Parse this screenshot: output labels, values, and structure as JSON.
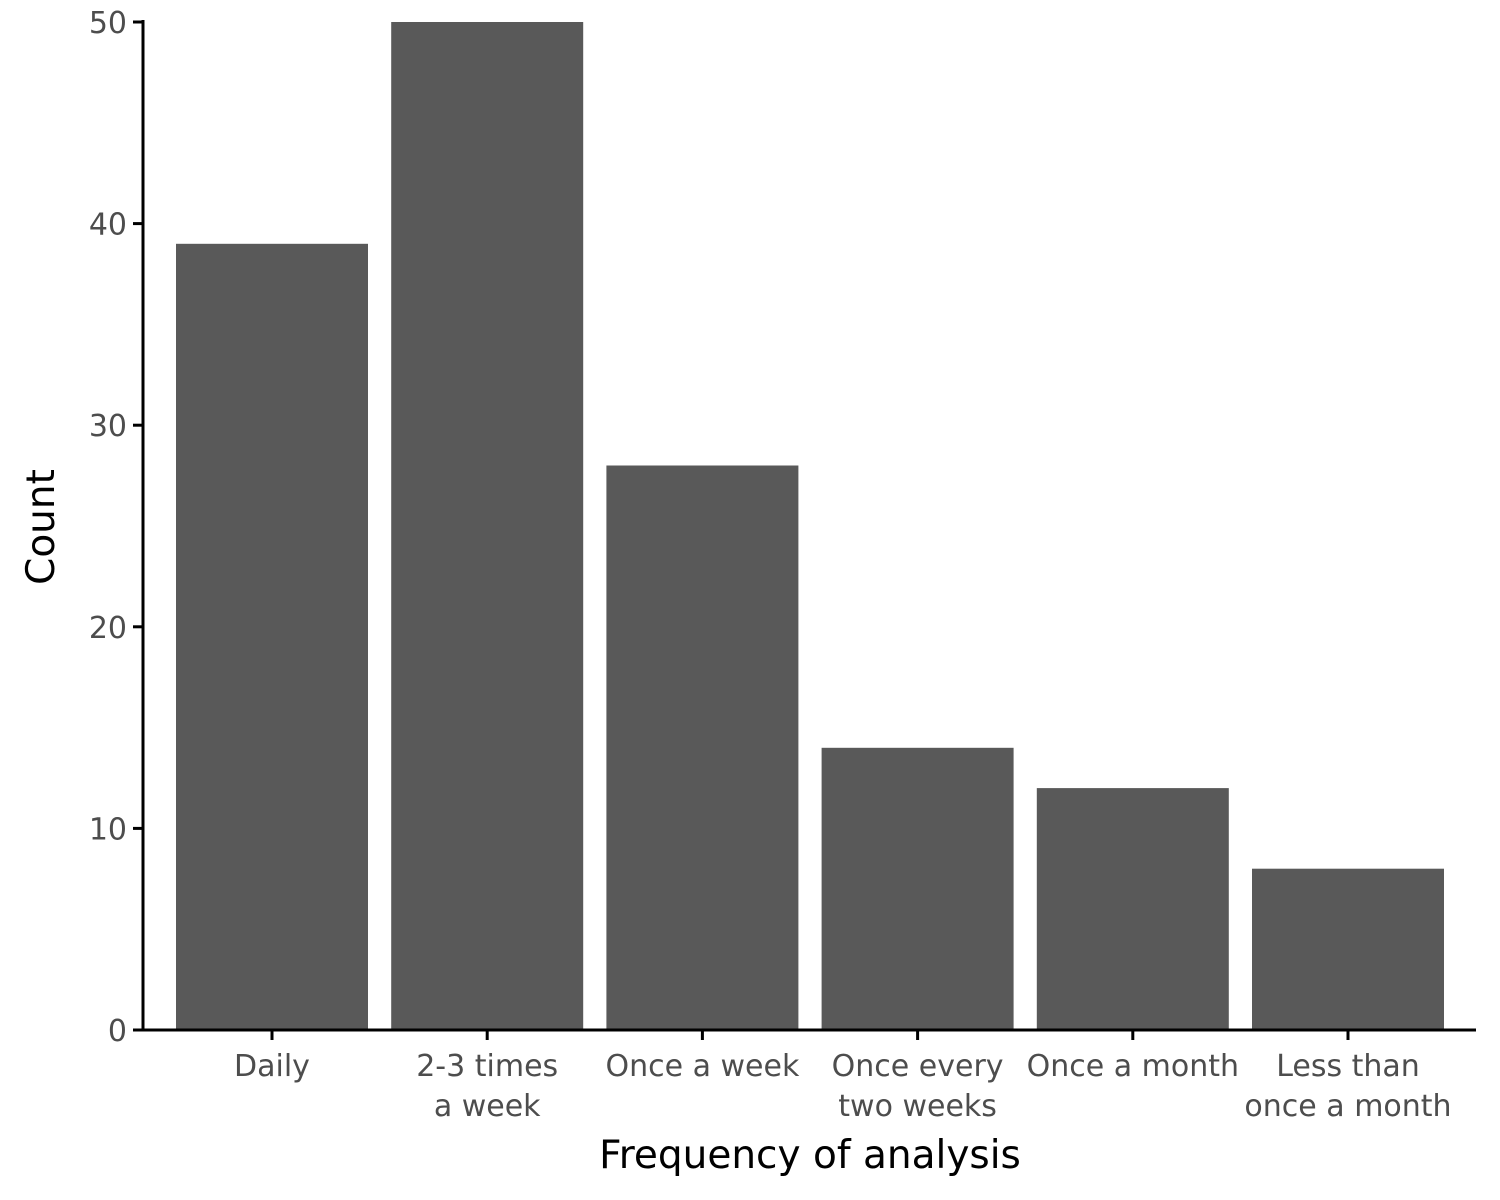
{
  "chart_data": {
    "type": "bar",
    "title": "",
    "xlabel": "Frequency of analysis",
    "ylabel": "Count",
    "categories": [
      [
        "Daily"
      ],
      [
        "2-3 times",
        "a week"
      ],
      [
        "Once a week"
      ],
      [
        "Once every",
        "two weeks"
      ],
      [
        "Once a month"
      ],
      [
        "Less than",
        "once a month"
      ]
    ],
    "values": [
      39,
      50,
      28,
      14,
      12,
      8
    ],
    "ylim": [
      0,
      50
    ],
    "yticks": [
      0,
      10,
      20,
      30,
      40,
      50
    ],
    "grid": false,
    "legend": "none",
    "colors": {
      "bar": "#595959",
      "axis": "#000000",
      "tick_label": "#4d4d4d",
      "title": "#000000"
    }
  }
}
